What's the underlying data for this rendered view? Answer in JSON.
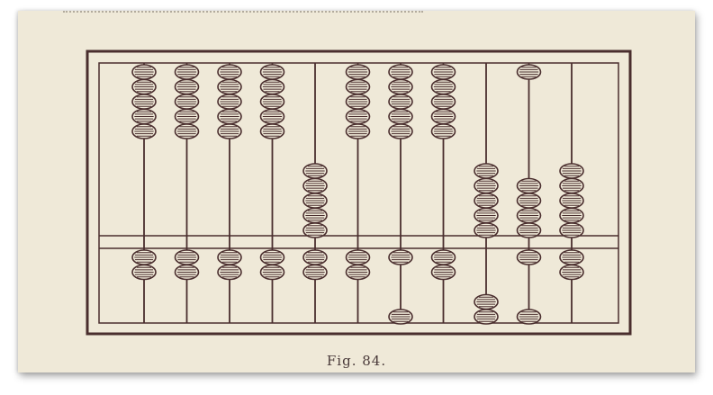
{
  "figure": {
    "caption": "Fig. 84."
  },
  "colors": {
    "ink": "#4a2e2e",
    "paper": "#efe9d8"
  },
  "abacus": {
    "rods": 11,
    "upper_count": [
      5,
      5,
      5,
      5,
      5,
      5,
      5,
      5,
      5,
      5,
      5
    ],
    "upper_pushed_down": [
      0,
      0,
      0,
      0,
      5,
      0,
      0,
      0,
      5,
      4,
      5
    ],
    "lower_count": [
      2,
      2,
      2,
      2,
      2,
      2,
      2,
      2,
      2,
      2,
      2
    ],
    "lower_pushed_down": [
      0,
      0,
      0,
      0,
      0,
      0,
      1,
      0,
      2,
      1,
      0
    ]
  }
}
